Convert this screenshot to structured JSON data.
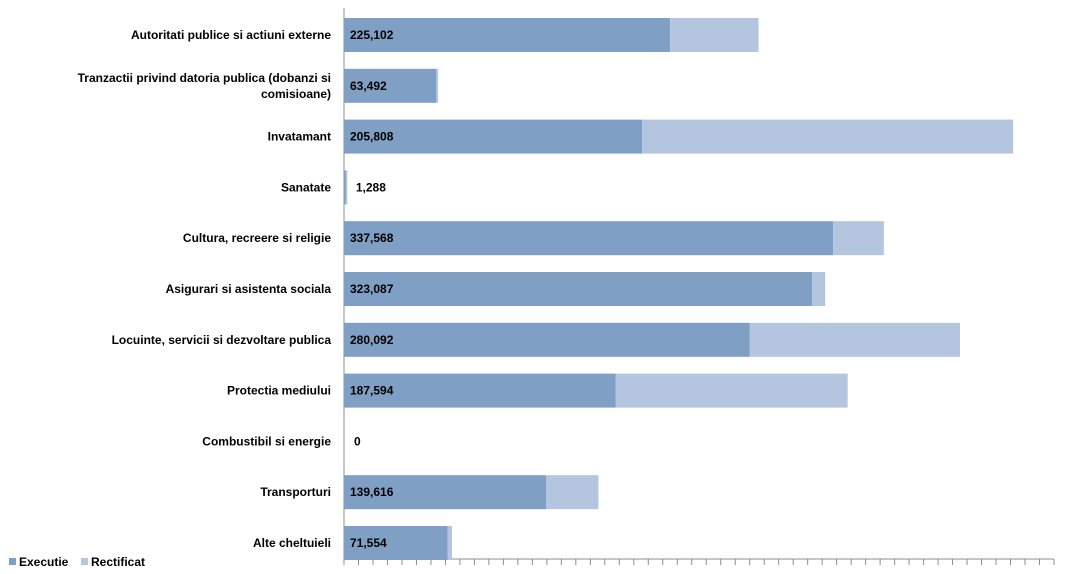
{
  "chart_data": {
    "type": "bar",
    "orientation": "horizontal",
    "stacked": true,
    "categories": [
      "Autoritati publice si actiuni externe",
      "Tranzactii privind datoria publica (dobanzi si comisioane)",
      "Invatamant",
      "Sanatate",
      "Cultura, recreere si religie",
      "Asigurari si asistenta sociala",
      "Locuinte, servicii si dezvoltare publica",
      "Protectia mediului",
      "Combustibil si energie",
      "Transporturi",
      "Alte cheltuieli"
    ],
    "category_lines": [
      [
        "Autoritati publice si actiuni externe"
      ],
      [
        "Tranzactii privind datoria publica (dobanzi si",
        "comisioane)"
      ],
      [
        "Invatamant"
      ],
      [
        "Sanatate"
      ],
      [
        "Cultura, recreere si religie"
      ],
      [
        "Asigurari si asistenta sociala"
      ],
      [
        "Locuinte, servicii si dezvoltare publica"
      ],
      [
        "Protectia mediului"
      ],
      [
        "Combustibil si energie"
      ],
      [
        "Transporturi"
      ],
      [
        "Alte cheltuieli"
      ]
    ],
    "series": [
      {
        "name": "Executie",
        "color": "#7f9fc4",
        "values": [
          225102,
          63492,
          205808,
          1288,
          337568,
          323087,
          280092,
          187594,
          0,
          139616,
          71554
        ],
        "labels": [
          "225,102",
          "63,492",
          "205,808",
          "1,288",
          "337,568",
          "323,087",
          "280,092",
          "187,594",
          "0",
          "139,616",
          "71,554"
        ]
      },
      {
        "name": "Rectificat",
        "color": "#b4c5e0",
        "values": [
          61000,
          1500,
          256000,
          1000,
          35000,
          9000,
          145000,
          160000,
          0,
          36000,
          3000
        ]
      }
    ],
    "xlim": [
      0,
      490000
    ],
    "x_minor_ticks": 49,
    "legend": {
      "placement": "bottom-left",
      "items": [
        {
          "label": "Executie",
          "color": "#7f9fc4"
        },
        {
          "label": "Rectificat",
          "color": "#b4c5e0"
        }
      ]
    },
    "grid": false
  }
}
